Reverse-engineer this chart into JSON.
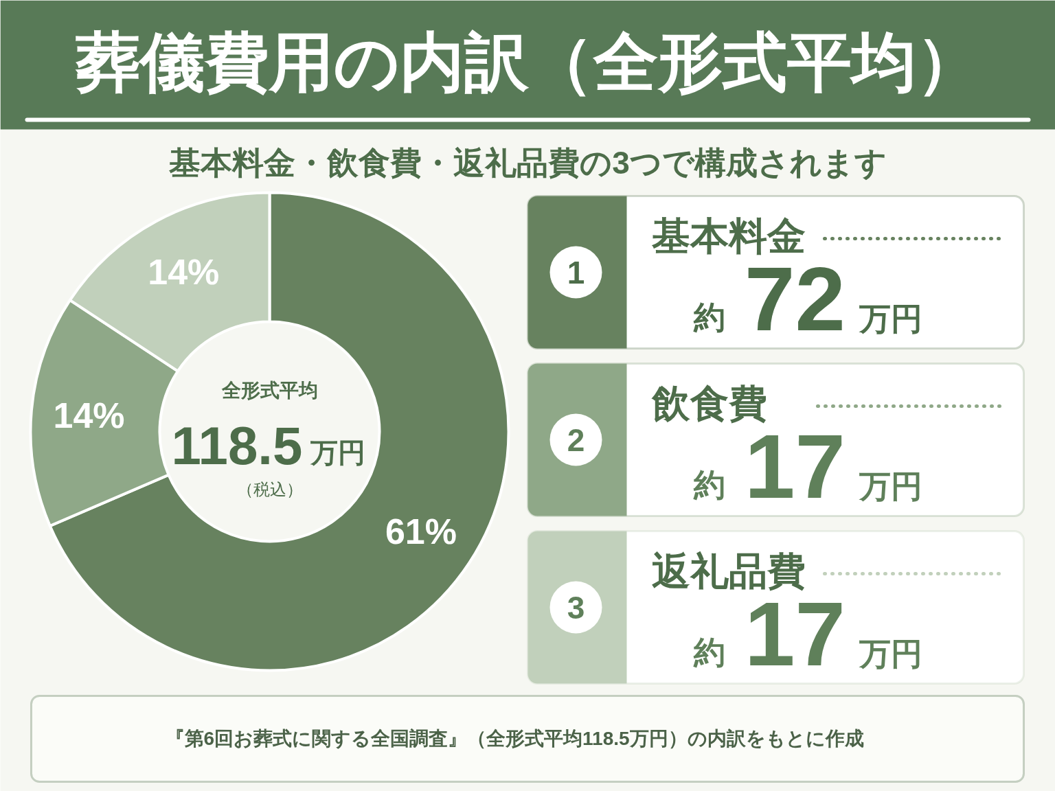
{
  "chart_data": [
    {
      "type": "donut",
      "title": "葬儀費用の内訳（全形式平均）",
      "subtitle": "基本料金・飲食費・返礼品費の3つで構成されます",
      "categories": [
        "基本料金",
        "飲食費",
        "返礼品費"
      ],
      "values": [
        61,
        14,
        14
      ],
      "colors": [
        "#67825f",
        "#8fa888",
        "#c1d0bb"
      ],
      "value_labels": [
        "61%",
        "14%",
        "14%"
      ],
      "annotations": [
        "全形式平均",
        "118.5万円",
        "（税込）"
      ],
      "legend": "right"
    },
    {
      "type": "other",
      "categories": [
        "1",
        "2",
        "3"
      ],
      "values": [
        72,
        17,
        17
      ],
      "value_labels": [
        "約72万円",
        "約17万円",
        "約17万円"
      ]
    },
    {
      "type": "other",
      "annotations": [
        "『第6回お葬式に関する全国調査』（全形式平均118.5万円）の内訳をもとに作成"
      ]
    }
  ]
}
